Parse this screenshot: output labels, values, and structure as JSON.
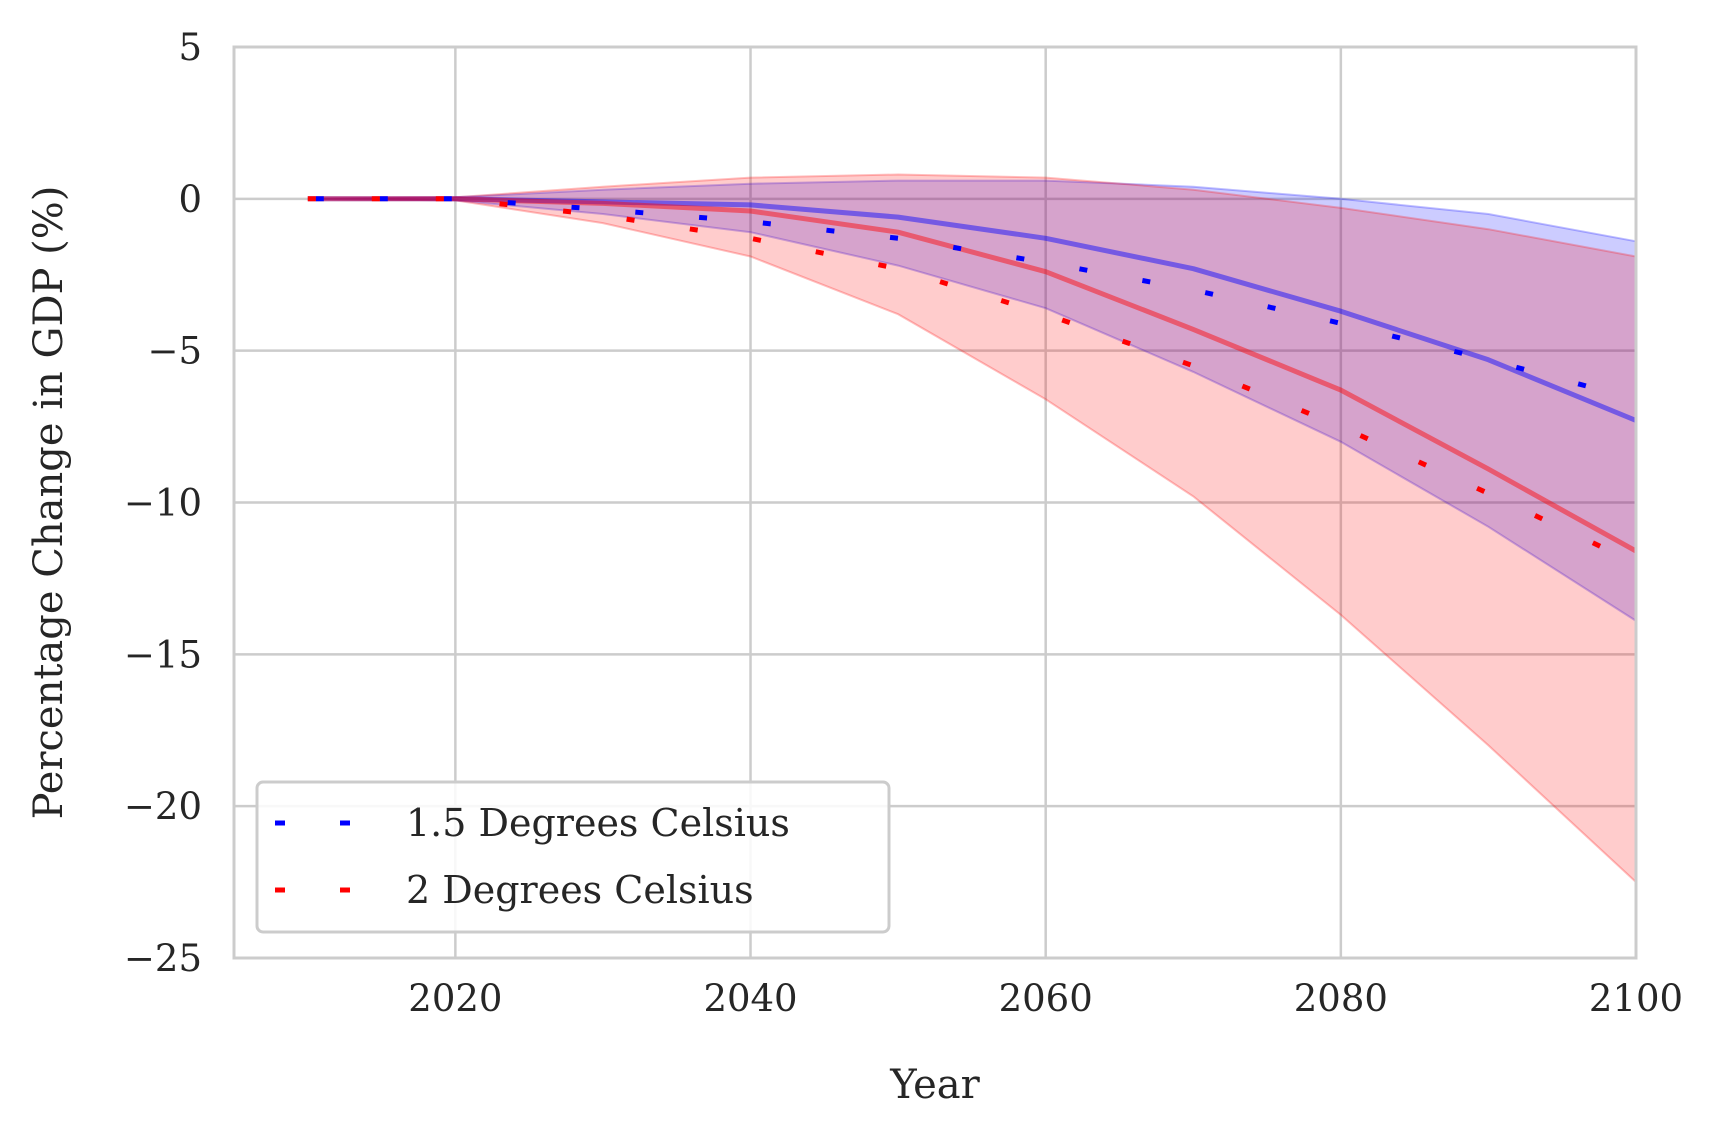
{
  "chart_data": {
    "type": "line",
    "title": "",
    "xlabel": "Year",
    "ylabel": "Percentage Change in GDP (%)",
    "xlim": [
      2005,
      2100
    ],
    "ylim": [
      -25,
      5
    ],
    "xticks": [
      2020,
      2040,
      2060,
      2080,
      2100
    ],
    "yticks": [
      5,
      0,
      -5,
      -10,
      -15,
      -20,
      -25
    ],
    "xtick_labels": [
      "2020",
      "2040",
      "2060",
      "2080",
      "2100"
    ],
    "ytick_labels": [
      "5",
      "0",
      "−5",
      "−10",
      "−15",
      "−20",
      "−25"
    ],
    "grid": true,
    "legend": {
      "position": "lower-left",
      "entries": [
        "1.5 Degrees Celsius",
        "2 Degrees Celsius"
      ]
    },
    "series": [
      {
        "name": "1.5 Degrees Celsius",
        "color": "#0000ff",
        "x": [
          2010,
          2020,
          2030,
          2040,
          2050,
          2060,
          2070,
          2080,
          2090,
          2100
        ],
        "dotted": [
          0,
          0,
          -0.35,
          -0.75,
          -1.3,
          -2.1,
          -3.0,
          -4.1,
          -5.3,
          -6.6
        ],
        "solid": [
          0,
          0,
          -0.1,
          -0.2,
          -0.6,
          -1.3,
          -2.3,
          -3.7,
          -5.3,
          -7.3
        ],
        "band_upper": [
          0,
          0.05,
          0.3,
          0.5,
          0.6,
          0.6,
          0.4,
          0,
          -0.5,
          -1.4
        ],
        "band_lower": [
          0,
          -0.05,
          -0.5,
          -1.1,
          -2.2,
          -3.6,
          -5.7,
          -8.0,
          -10.8,
          -13.9
        ]
      },
      {
        "name": "2 Degrees Celsius",
        "color": "#ff0000",
        "x": [
          2010,
          2020,
          2030,
          2040,
          2050,
          2060,
          2070,
          2080,
          2090,
          2100
        ],
        "dotted": [
          0,
          0,
          -0.55,
          -1.3,
          -2.3,
          -3.8,
          -5.5,
          -7.5,
          -9.7,
          -12.0
        ],
        "solid": [
          0,
          0,
          -0.15,
          -0.4,
          -1.1,
          -2.4,
          -4.3,
          -6.3,
          -8.9,
          -11.6
        ],
        "band_upper": [
          0,
          0.05,
          0.4,
          0.7,
          0.8,
          0.7,
          0.3,
          -0.3,
          -1.0,
          -1.9
        ],
        "band_lower": [
          0,
          -0.05,
          -0.8,
          -1.9,
          -3.8,
          -6.6,
          -9.8,
          -13.7,
          -18.0,
          -22.5
        ]
      }
    ]
  }
}
